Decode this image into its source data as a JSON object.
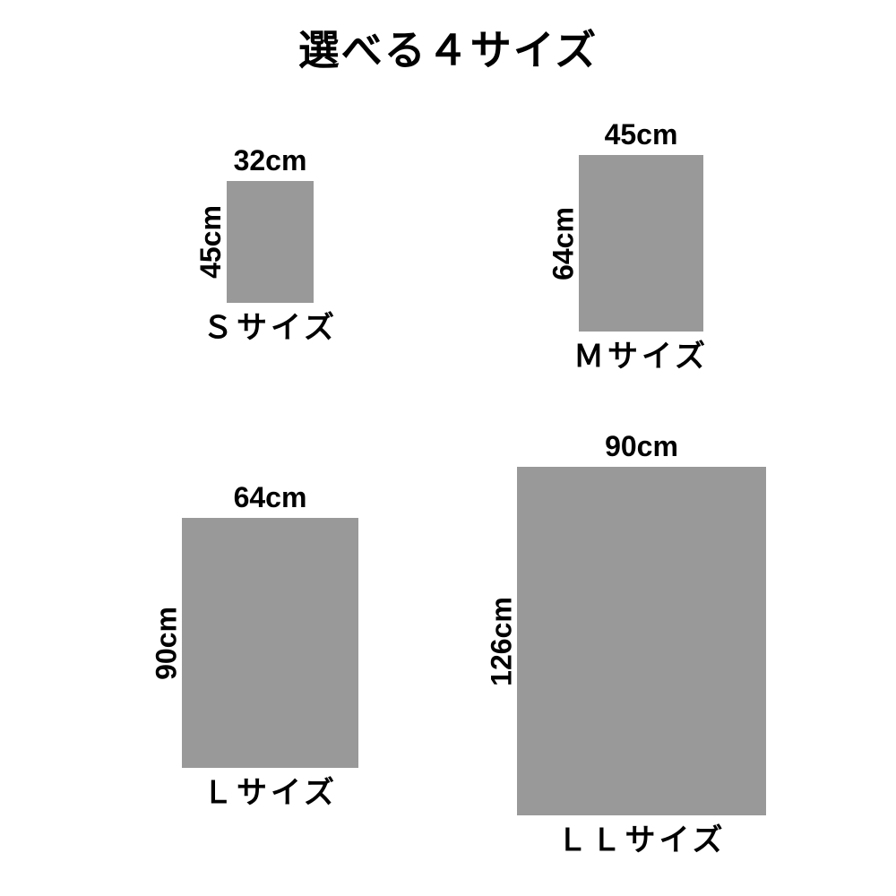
{
  "page": {
    "title": "選べる４サイズ",
    "background_color": "#ffffff",
    "text_color": "#000000",
    "rect_color": "#999999"
  },
  "sizes": [
    {
      "name": "Ｓサイズ",
      "width_label": "32cm",
      "height_label": "45cm",
      "width_cm": 32,
      "height_cm": 45
    },
    {
      "name": "Ｍサイズ",
      "width_label": "45cm",
      "height_label": "64cm",
      "width_cm": 45,
      "height_cm": 64
    },
    {
      "name": "Ｌサイズ",
      "width_label": "64cm",
      "height_label": "90cm",
      "width_cm": 64,
      "height_cm": 90
    },
    {
      "name": "ＬＬサイズ",
      "width_label": "90cm",
      "height_label": "126cm",
      "width_cm": 90,
      "height_cm": 126
    }
  ]
}
